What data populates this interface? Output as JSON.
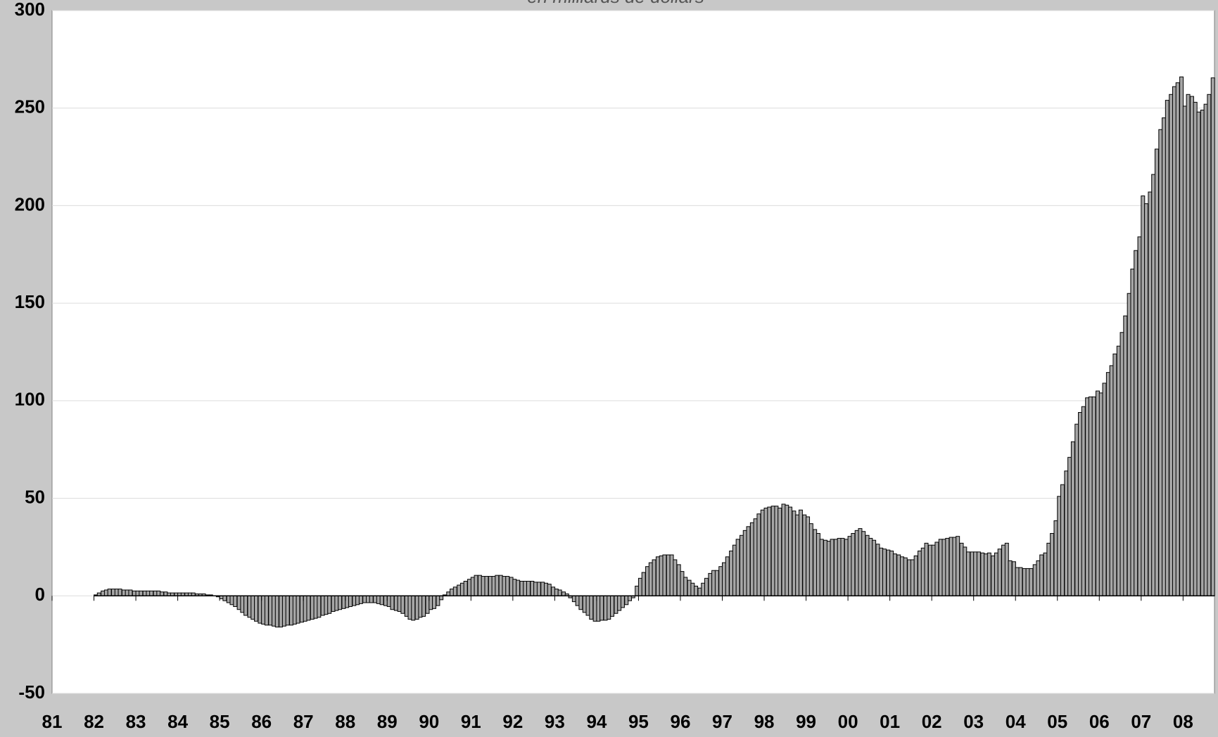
{
  "chart_data": {
    "type": "bar",
    "subtitle": "en milliards de dollars",
    "x": [
      1982,
      1982.08,
      1982.17,
      1982.25,
      1982.33,
      1982.42,
      1982.5,
      1982.58,
      1982.67,
      1982.75,
      1982.83,
      1982.92,
      1983,
      1983.08,
      1983.17,
      1983.25,
      1983.33,
      1983.42,
      1983.5,
      1983.58,
      1983.67,
      1983.75,
      1983.83,
      1983.92,
      1984,
      1984.08,
      1984.17,
      1984.25,
      1984.33,
      1984.42,
      1984.5,
      1984.58,
      1984.67,
      1984.75,
      1984.83,
      1984.92,
      1985,
      1985.08,
      1985.17,
      1985.25,
      1985.33,
      1985.42,
      1985.5,
      1985.58,
      1985.67,
      1985.75,
      1985.83,
      1985.92,
      1986,
      1986.08,
      1986.17,
      1986.25,
      1986.33,
      1986.42,
      1986.5,
      1986.58,
      1986.67,
      1986.75,
      1986.83,
      1986.92,
      1987,
      1987.08,
      1987.17,
      1987.25,
      1987.33,
      1987.42,
      1987.5,
      1987.58,
      1987.67,
      1987.75,
      1987.83,
      1987.92,
      1988,
      1988.08,
      1988.17,
      1988.25,
      1988.33,
      1988.42,
      1988.5,
      1988.58,
      1988.67,
      1988.75,
      1988.83,
      1988.92,
      1989,
      1989.08,
      1989.17,
      1989.25,
      1989.33,
      1989.42,
      1989.5,
      1989.58,
      1989.67,
      1989.75,
      1989.83,
      1989.92,
      1990,
      1990.08,
      1990.17,
      1990.25,
      1990.33,
      1990.42,
      1990.5,
      1990.58,
      1990.67,
      1990.75,
      1990.83,
      1990.92,
      1991,
      1991.08,
      1991.17,
      1991.25,
      1991.33,
      1991.42,
      1991.5,
      1991.58,
      1991.67,
      1991.75,
      1991.83,
      1991.92,
      1992,
      1992.08,
      1992.17,
      1992.25,
      1992.33,
      1992.42,
      1992.5,
      1992.58,
      1992.67,
      1992.75,
      1992.83,
      1992.92,
      1993,
      1993.08,
      1993.17,
      1993.25,
      1993.33,
      1993.42,
      1993.5,
      1993.58,
      1993.67,
      1993.75,
      1993.83,
      1993.92,
      1994,
      1994.08,
      1994.17,
      1994.25,
      1994.33,
      1994.42,
      1994.5,
      1994.58,
      1994.67,
      1994.75,
      1994.83,
      1994.92,
      1995,
      1995.08,
      1995.17,
      1995.25,
      1995.33,
      1995.42,
      1995.5,
      1995.58,
      1995.67,
      1995.75,
      1995.83,
      1995.92,
      1996,
      1996.08,
      1996.17,
      1996.25,
      1996.33,
      1996.42,
      1996.5,
      1996.58,
      1996.67,
      1996.75,
      1996.83,
      1996.92,
      1997,
      1997.08,
      1997.17,
      1997.25,
      1997.33,
      1997.42,
      1997.5,
      1997.58,
      1997.67,
      1997.75,
      1997.83,
      1997.92,
      1998,
      1998.08,
      1998.17,
      1998.25,
      1998.33,
      1998.42,
      1998.5,
      1998.58,
      1998.67,
      1998.75,
      1998.83,
      1998.92,
      1999,
      1999.08,
      1999.17,
      1999.25,
      1999.33,
      1999.42,
      1999.5,
      1999.58,
      1999.67,
      1999.75,
      1999.83,
      1999.92,
      2000,
      2000.08,
      2000.17,
      2000.25,
      2000.33,
      2000.42,
      2000.5,
      2000.58,
      2000.67,
      2000.75,
      2000.83,
      2000.92,
      2001,
      2001.08,
      2001.17,
      2001.25,
      2001.33,
      2001.42,
      2001.5,
      2001.58,
      2001.67,
      2001.75,
      2001.83,
      2001.92,
      2002,
      2002.08,
      2002.17,
      2002.25,
      2002.33,
      2002.42,
      2002.5,
      2002.58,
      2002.67,
      2002.75,
      2002.83,
      2002.92,
      2003,
      2003.08,
      2003.17,
      2003.25,
      2003.33,
      2003.42,
      2003.5,
      2003.58,
      2003.67,
      2003.75,
      2003.83,
      2003.92,
      2004,
      2004.08,
      2004.17,
      2004.25,
      2004.33,
      2004.42,
      2004.5,
      2004.58,
      2004.67,
      2004.75,
      2004.83,
      2004.92,
      2005,
      2005.08,
      2005.17,
      2005.25,
      2005.33,
      2005.42,
      2005.5,
      2005.58,
      2005.67,
      2005.75,
      2005.83,
      2005.92,
      2006,
      2006.08,
      2006.17,
      2006.25,
      2006.33,
      2006.42,
      2006.5,
      2006.58,
      2006.67,
      2006.75,
      2006.83,
      2006.92,
      2007,
      2007.08,
      2007.17,
      2007.25,
      2007.33,
      2007.42,
      2007.5,
      2007.58,
      2007.67,
      2007.75,
      2007.83,
      2007.92,
      2008,
      2008.08,
      2008.17,
      2008.25,
      2008.33,
      2008.42,
      2008.5,
      2008.58,
      2008.67
    ],
    "values": [
      0.5,
      1.5,
      2.5,
      3,
      3.5,
      3.5,
      3.5,
      3.5,
      3,
      3,
      3,
      2.5,
      2.5,
      2.5,
      2.5,
      2.5,
      2.5,
      2.5,
      2.5,
      2,
      2,
      1.5,
      1.5,
      1.5,
      1.5,
      1.5,
      1.5,
      1.5,
      1.5,
      1,
      1,
      1,
      0.5,
      0.5,
      0,
      -0.5,
      -1.5,
      -2.5,
      -3.5,
      -4.5,
      -5.5,
      -7,
      -8.5,
      -10,
      -11,
      -12,
      -13,
      -14,
      -14.5,
      -15,
      -15,
      -15.5,
      -16,
      -16,
      -15.5,
      -15,
      -15,
      -14.5,
      -14,
      -13.5,
      -13,
      -12.5,
      -12,
      -11.5,
      -11,
      -10,
      -9.5,
      -9,
      -8,
      -7.5,
      -7,
      -6.5,
      -6,
      -5.5,
      -5,
      -4.5,
      -4,
      -3.5,
      -3.5,
      -3.5,
      -3.5,
      -4,
      -4.5,
      -5,
      -5.5,
      -7,
      -7.5,
      -8,
      -9,
      -10.5,
      -12,
      -12.5,
      -12,
      -11,
      -10.5,
      -9,
      -7,
      -6.5,
      -5,
      -2,
      0.5,
      2,
      3.5,
      4.5,
      5.5,
      6.5,
      7.5,
      8.5,
      9.5,
      10.5,
      10.5,
      10,
      10,
      10,
      10,
      10.5,
      10.5,
      10,
      10,
      9.5,
      8.5,
      8,
      7.5,
      7.5,
      7.5,
      7.5,
      7,
      7,
      7,
      6.5,
      6,
      4.5,
      3.5,
      3,
      2,
      1,
      -1,
      -3,
      -5,
      -7,
      -8.5,
      -10,
      -12,
      -13,
      -13,
      -12.5,
      -12.5,
      -12,
      -10.5,
      -9,
      -7.5,
      -6,
      -4.5,
      -2.5,
      -1,
      5,
      9,
      12,
      15,
      17,
      18.5,
      20,
      20.5,
      21,
      21,
      21,
      18.5,
      16,
      12.5,
      9.5,
      8,
      6.5,
      5,
      4,
      6.5,
      9,
      11.5,
      13,
      13,
      15,
      17,
      20,
      23,
      26,
      29,
      31,
      33.5,
      35.5,
      37.5,
      39.5,
      42,
      44,
      45,
      45.5,
      46,
      46,
      45,
      47,
      46.5,
      45.5,
      43.5,
      41.5,
      44,
      41.5,
      40.5,
      37,
      34,
      32,
      29,
      28.5,
      28,
      29,
      29,
      29.5,
      29.5,
      29,
      30.5,
      32,
      33.5,
      34.5,
      33,
      31,
      29.5,
      28.5,
      26.5,
      24.5,
      24,
      23.5,
      23,
      21.5,
      21,
      20,
      19.5,
      18.5,
      18.5,
      20.5,
      23,
      24.5,
      27,
      26,
      26,
      27.5,
      29,
      29,
      29.5,
      30,
      30,
      30.5,
      27,
      25,
      22.5,
      22.5,
      22.5,
      22.5,
      22,
      21.5,
      22,
      20.5,
      22,
      24,
      26,
      27,
      18,
      17.5,
      14.5,
      14.5,
      14,
      14,
      14,
      16,
      18,
      21,
      22,
      27,
      32,
      38.5,
      51,
      57,
      64,
      71,
      79,
      88,
      94,
      97,
      101.5,
      102,
      102,
      105,
      104,
      109,
      114.5,
      118,
      124,
      128,
      135,
      143.5,
      155,
      167.5,
      177,
      184,
      205,
      201,
      207,
      216,
      229,
      239,
      245,
      254,
      257,
      261,
      263,
      266,
      251,
      257,
      256,
      253,
      248,
      249,
      252,
      257,
      265.5
    ],
    "color": "#a6a6a6",
    "xlim": [
      1981,
      2008.75
    ],
    "xticks": [
      {
        "value": 1981,
        "label": "81"
      },
      {
        "value": 1982,
        "label": "82"
      },
      {
        "value": 1983,
        "label": "83"
      },
      {
        "value": 1984,
        "label": "84"
      },
      {
        "value": 1985,
        "label": "85"
      },
      {
        "value": 1986,
        "label": "86"
      },
      {
        "value": 1987,
        "label": "87"
      },
      {
        "value": 1988,
        "label": "88"
      },
      {
        "value": 1989,
        "label": "89"
      },
      {
        "value": 1990,
        "label": "90"
      },
      {
        "value": 1991,
        "label": "91"
      },
      {
        "value": 1992,
        "label": "92"
      },
      {
        "value": 1993,
        "label": "93"
      },
      {
        "value": 1994,
        "label": "94"
      },
      {
        "value": 1995,
        "label": "95"
      },
      {
        "value": 1996,
        "label": "96"
      },
      {
        "value": 1997,
        "label": "97"
      },
      {
        "value": 1998,
        "label": "98"
      },
      {
        "value": 1999,
        "label": "99"
      },
      {
        "value": 2000,
        "label": "00"
      },
      {
        "value": 2001,
        "label": "01"
      },
      {
        "value": 2002,
        "label": "02"
      },
      {
        "value": 2003,
        "label": "03"
      },
      {
        "value": 2004,
        "label": "04"
      },
      {
        "value": 2005,
        "label": "05"
      },
      {
        "value": 2006,
        "label": "06"
      },
      {
        "value": 2007,
        "label": "07"
      },
      {
        "value": 2008,
        "label": "08"
      }
    ],
    "ylim": [
      -50,
      300
    ],
    "yticks": [
      -50,
      0,
      50,
      100,
      150,
      200,
      250,
      300
    ],
    "grid": true
  }
}
